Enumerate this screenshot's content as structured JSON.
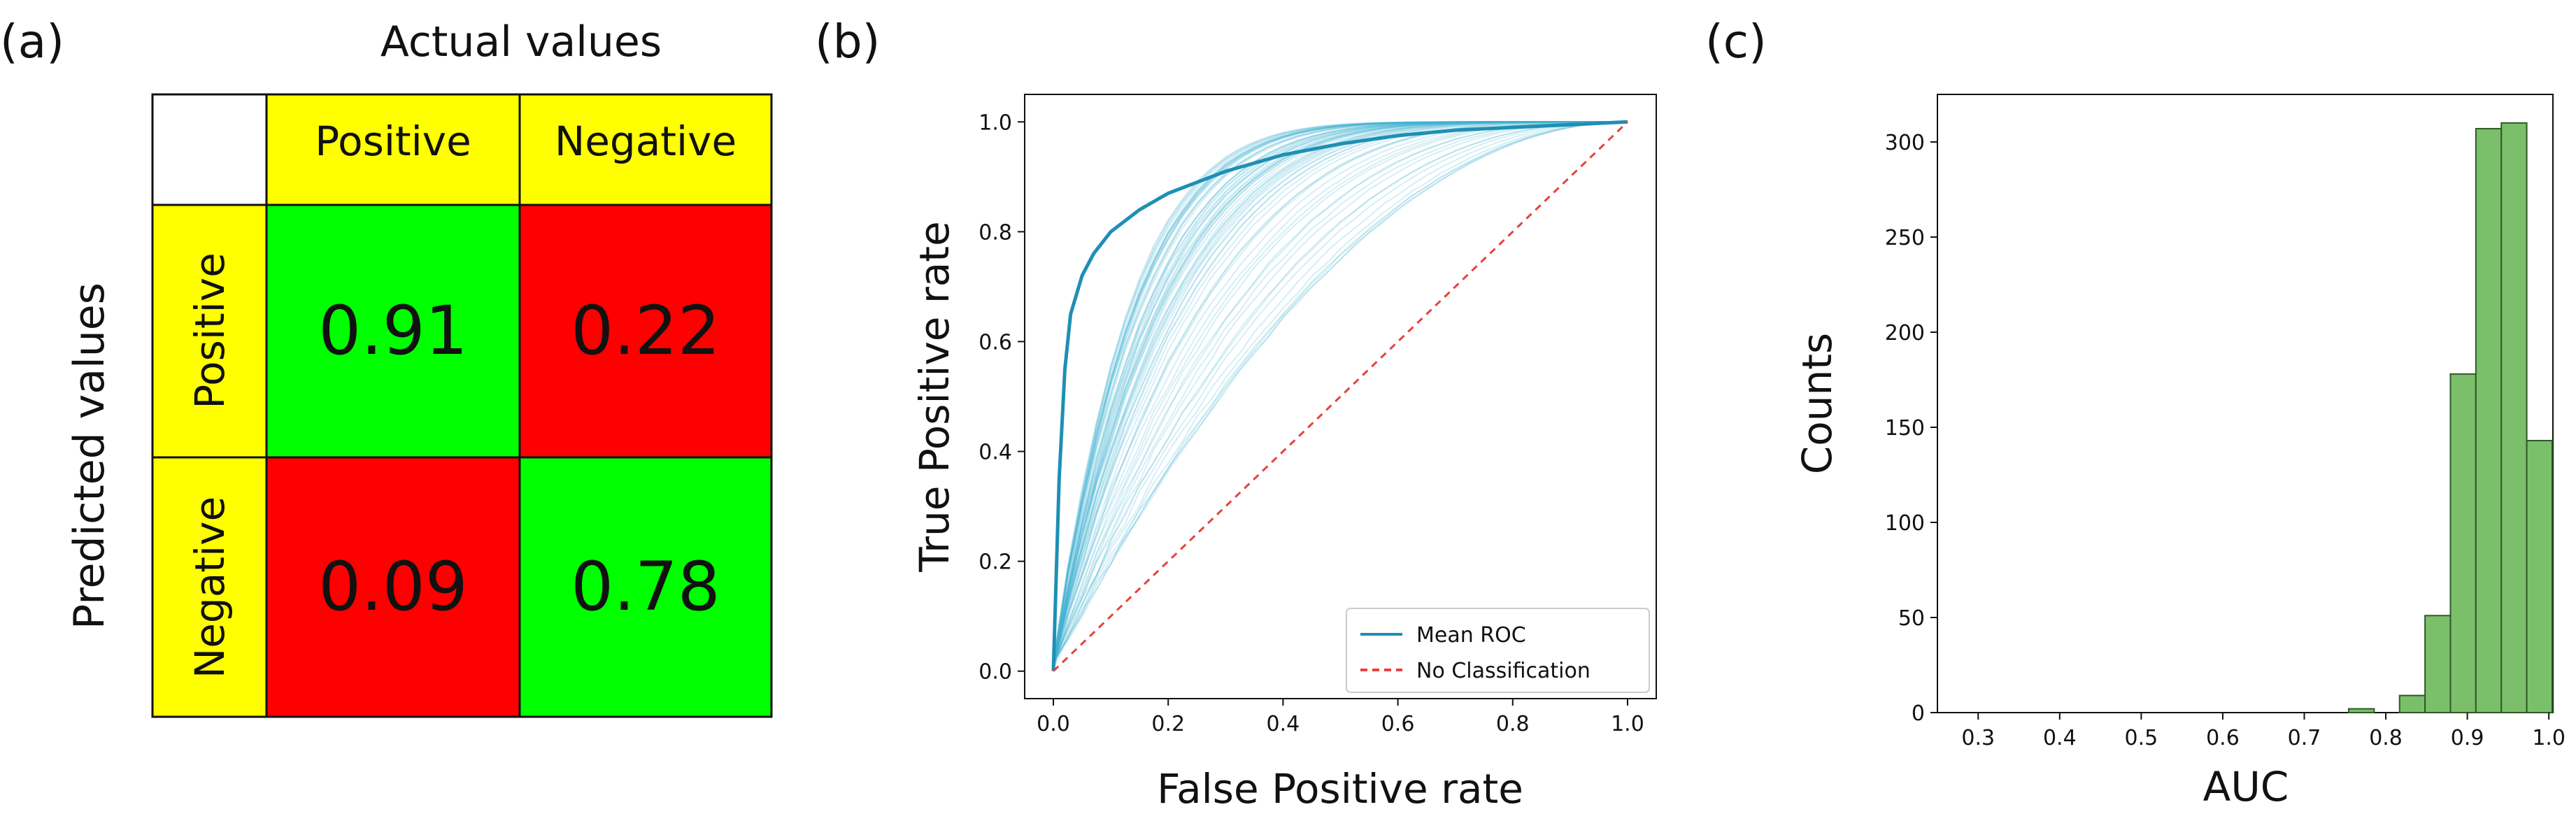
{
  "panels": {
    "a": {
      "tag": "(a)",
      "chart_data": {
        "type": "table",
        "title": "Actual values",
        "row_axis_label": "Predicted values",
        "column_headers": [
          "Positive",
          "Negative"
        ],
        "row_headers": [
          "Positive",
          "Negative"
        ],
        "values": [
          [
            "0.91",
            "0.22"
          ],
          [
            "0.09",
            "0.78"
          ]
        ],
        "cell_colors": [
          [
            "#00ff00",
            "#ff0000"
          ],
          [
            "#ff0000",
            "#00ff00"
          ]
        ],
        "header_color": "#ffff00"
      }
    },
    "b": {
      "tag": "(b)",
      "chart_data": {
        "type": "line",
        "xlabel": "False Positive rate",
        "ylabel": "True Positive rate",
        "xlim": [
          -0.05,
          1.05
        ],
        "ylim": [
          -0.05,
          1.05
        ],
        "xticks": [
          "0.0",
          "0.2",
          "0.4",
          "0.6",
          "0.8",
          "1.0"
        ],
        "yticks": [
          "0.0",
          "0.2",
          "0.4",
          "0.6",
          "0.8",
          "1.0"
        ],
        "series": [
          {
            "name": "Mean ROC",
            "color": "#1f8fb4",
            "x": [
              0,
              0.01,
              0.02,
              0.03,
              0.05,
              0.07,
              0.1,
              0.15,
              0.2,
              0.3,
              0.4,
              0.5,
              0.6,
              0.7,
              0.8,
              0.9,
              1.0
            ],
            "y": [
              0,
              0.35,
              0.55,
              0.65,
              0.72,
              0.76,
              0.8,
              0.84,
              0.87,
              0.91,
              0.94,
              0.96,
              0.975,
              0.985,
              0.99,
              0.995,
              1.0
            ]
          },
          {
            "name": "No Classification",
            "color": "#e8413c",
            "style": "dashed",
            "x": [
              0,
              1
            ],
            "y": [
              0,
              1
            ]
          }
        ],
        "bootstrap_color": "#3fb3d3",
        "legend_position": "bottom-right"
      }
    },
    "c": {
      "tag": "(c)",
      "chart_data": {
        "type": "bar",
        "xlabel": "AUC",
        "ylabel": "Counts",
        "xlim": [
          0.25,
          1.005
        ],
        "ylim": [
          0,
          325
        ],
        "xticks": [
          "0.3",
          "0.4",
          "0.5",
          "0.6",
          "0.7",
          "0.8",
          "0.9",
          "1.0"
        ],
        "yticks": [
          "0",
          "50",
          "100",
          "150",
          "200",
          "250",
          "300"
        ],
        "bin_edges": [
          0.7545,
          0.7857,
          0.8169,
          0.8481,
          0.8793,
          0.9105,
          0.9417,
          0.9729,
          1.0041
        ],
        "values": [
          2,
          0,
          9,
          51,
          178,
          307,
          310,
          143
        ],
        "bar_color": "#7cbf6b",
        "edge_color": "#2d5a27"
      }
    }
  }
}
